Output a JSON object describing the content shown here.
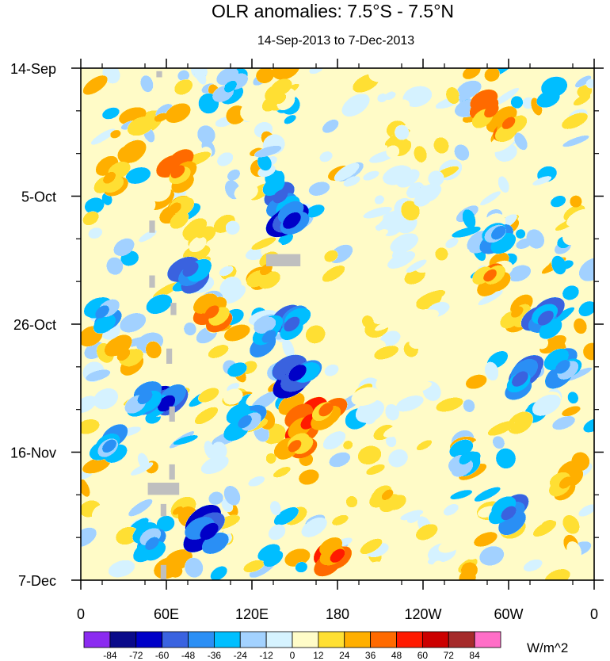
{
  "chart_data": {
    "type": "heatmap",
    "title": "OLR anomalies: 7.5°S - 7.5°N",
    "subtitle": "14-Sep-2013 to 7-Dec-2013",
    "x_label": "",
    "y_label": "",
    "x_range_deg": [
      0,
      360
    ],
    "y_range_days": [
      0,
      84
    ],
    "y_direction": "time increases downward",
    "x_ticks": [
      {
        "deg": 0,
        "label": "0"
      },
      {
        "deg": 60,
        "label": "60E"
      },
      {
        "deg": 120,
        "label": "120E"
      },
      {
        "deg": 180,
        "label": "180"
      },
      {
        "deg": 240,
        "label": "120W"
      },
      {
        "deg": 300,
        "label": "60W"
      },
      {
        "deg": 360,
        "label": "0"
      }
    ],
    "y_ticks": [
      {
        "day": 0,
        "label": "14-Sep"
      },
      {
        "day": 21,
        "label": "5-Oct"
      },
      {
        "day": 42,
        "label": "26-Oct"
      },
      {
        "day": 63,
        "label": "16-Nov"
      },
      {
        "day": 84,
        "label": "7-Dec"
      }
    ],
    "colorbar": {
      "units": "W/m^2",
      "levels": [
        "-84",
        "-72",
        "-60",
        "-48",
        "-36",
        "-24",
        "-12",
        "0",
        "12",
        "24",
        "36",
        "48",
        "60",
        "72",
        "84"
      ],
      "colors": [
        "#8b2bf0",
        "#0a0a8a",
        "#0000c8",
        "#3a63e0",
        "#2b8ff5",
        "#00bfff",
        "#a3d2ff",
        "#d6f3ff",
        "#fffcc8",
        "#ffe033",
        "#ffaf00",
        "#ff6a00",
        "#ff1a00",
        "#cc0000",
        "#a52a2a",
        "#ff6ec7"
      ]
    },
    "anomaly_features": [
      {
        "lon": 68,
        "day": 17,
        "value": 42
      },
      {
        "lon": 66,
        "day": 23,
        "value": 30
      },
      {
        "lon": 85,
        "day": 27,
        "value": 22
      },
      {
        "lon": 140,
        "day": 5,
        "value": 20
      },
      {
        "lon": 105,
        "day": 3,
        "value": -30
      },
      {
        "lon": 140,
        "day": 21,
        "value": -50
      },
      {
        "lon": 148,
        "day": 25,
        "value": -70
      },
      {
        "lon": 77,
        "day": 33,
        "value": -55
      },
      {
        "lon": 92,
        "day": 40,
        "value": 42
      },
      {
        "lon": 130,
        "day": 33,
        "value": 30
      },
      {
        "lon": 148,
        "day": 42,
        "value": -55
      },
      {
        "lon": 152,
        "day": 50,
        "value": -68
      },
      {
        "lon": 132,
        "day": 44,
        "value": -40
      },
      {
        "lon": 60,
        "day": 55,
        "value": -68
      },
      {
        "lon": 45,
        "day": 54,
        "value": -45
      },
      {
        "lon": 160,
        "day": 58,
        "value": 60
      },
      {
        "lon": 172,
        "day": 56,
        "value": 45
      },
      {
        "lon": 150,
        "day": 62,
        "value": 36
      },
      {
        "lon": 20,
        "day": 62,
        "value": -40
      },
      {
        "lon": 90,
        "day": 76,
        "value": -72
      },
      {
        "lon": 50,
        "day": 78,
        "value": -40
      },
      {
        "lon": 180,
        "day": 80,
        "value": 48
      },
      {
        "lon": 215,
        "day": 70,
        "value": 24
      },
      {
        "lon": 288,
        "day": 7,
        "value": 45
      },
      {
        "lon": 300,
        "day": 9,
        "value": 36
      },
      {
        "lon": 287,
        "day": 34,
        "value": 36
      },
      {
        "lon": 306,
        "day": 40,
        "value": 28
      },
      {
        "lon": 293,
        "day": 27,
        "value": -45
      },
      {
        "lon": 326,
        "day": 41,
        "value": -55
      },
      {
        "lon": 308,
        "day": 51,
        "value": -58
      },
      {
        "lon": 338,
        "day": 49,
        "value": -45
      },
      {
        "lon": 300,
        "day": 73,
        "value": -50
      },
      {
        "lon": 270,
        "day": 64,
        "value": -35
      },
      {
        "lon": 340,
        "day": 68,
        "value": 32
      },
      {
        "lon": 20,
        "day": 18,
        "value": 30
      },
      {
        "lon": 15,
        "day": 40,
        "value": -40
      },
      {
        "lon": 30,
        "day": 47,
        "value": 34
      },
      {
        "lon": 115,
        "day": 58,
        "value": -40
      },
      {
        "lon": 240,
        "day": 20,
        "value": -12
      }
    ],
    "missing_data_cells": [
      {
        "lon": 53,
        "day": 0.5,
        "w": 4,
        "h": 1
      },
      {
        "lon": 48,
        "day": 25,
        "w": 4,
        "h": 2
      },
      {
        "lon": 130,
        "day": 30.5,
        "w": 24,
        "h": 2
      },
      {
        "lon": 48,
        "day": 34,
        "w": 4,
        "h": 2
      },
      {
        "lon": 63,
        "day": 38.5,
        "w": 4,
        "h": 2
      },
      {
        "lon": 60,
        "day": 46,
        "w": 4,
        "h": 2.5
      },
      {
        "lon": 62,
        "day": 55.5,
        "w": 4,
        "h": 2.5
      },
      {
        "lon": 62,
        "day": 65,
        "w": 4,
        "h": 2.5
      },
      {
        "lon": 47,
        "day": 68,
        "w": 22,
        "h": 2
      },
      {
        "lon": 56,
        "day": 71.5,
        "w": 4,
        "h": 2
      },
      {
        "lon": 56,
        "day": 81.5,
        "w": 4,
        "h": 2.5
      }
    ]
  }
}
